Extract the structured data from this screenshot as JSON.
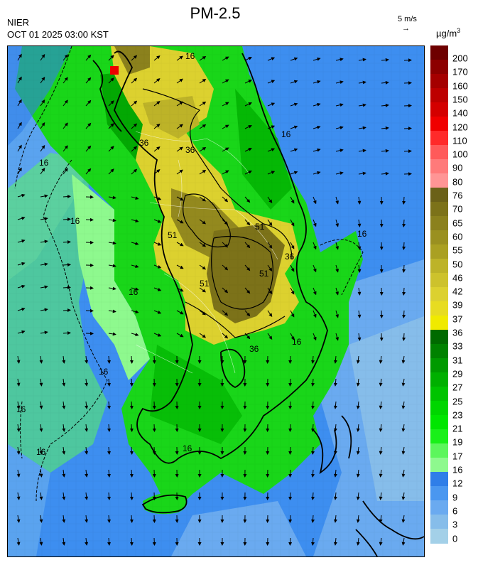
{
  "header": {
    "source": "NIER",
    "datetime": "OCT 01 2025 03:00 KST",
    "title": "PM-2.5",
    "wind_reference": "5 m/s",
    "wind_reference_arrow": "→",
    "unit_main": "µg/m",
    "unit_sup": "3"
  },
  "colorbar": {
    "labels": [
      "200",
      "170",
      "160",
      "150",
      "140",
      "120",
      "110",
      "100",
      "90",
      "80",
      "76",
      "70",
      "65",
      "60",
      "55",
      "50",
      "46",
      "42",
      "39",
      "37",
      "36",
      "33",
      "31",
      "29",
      "27",
      "25",
      "23",
      "21",
      "19",
      "17",
      "16",
      "12",
      "9",
      "6",
      "3",
      "0"
    ],
    "colors": [
      "#6e0000",
      "#8c0000",
      "#a50000",
      "#bd0000",
      "#d40000",
      "#f00000",
      "#ff2a2a",
      "#ff5a5a",
      "#ff7a7a",
      "#ff9595",
      "#6b6118",
      "#7c7219",
      "#8b811d",
      "#9a9020",
      "#aaa022",
      "#bdb328",
      "#cdc22c",
      "#dcd12f",
      "#e7dc21",
      "#f0ea00",
      "#006a00",
      "#008200",
      "#009a00",
      "#00b000",
      "#00c400",
      "#00d600",
      "#00e600",
      "#19f019",
      "#5cf65c",
      "#8ef98e",
      "#2f7ee8",
      "#4a97f0",
      "#6aaaf0",
      "#86bdea",
      "#a3d0e8"
    ]
  },
  "map": {
    "contour_labels": [
      "16",
      "16",
      "16",
      "16",
      "16",
      "16",
      "16",
      "16",
      "16",
      "16",
      "16",
      "36",
      "36",
      "36",
      "36",
      "51",
      "51",
      "51",
      "51"
    ]
  }
}
